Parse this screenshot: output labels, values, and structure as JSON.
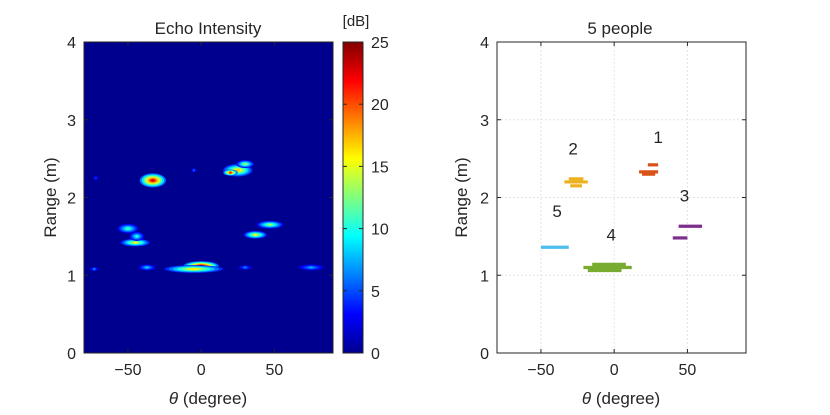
{
  "chart_data": [
    {
      "type": "heatmap",
      "title": "Echo Intensity",
      "xlabel_symbol": "θ",
      "xlabel_rest": " (degree)",
      "ylabel": "Range (m)",
      "xlim": [
        -80,
        90
      ],
      "ylim": [
        0,
        4
      ],
      "xticks": [
        -50,
        0,
        50
      ],
      "yticks": [
        0,
        1,
        2,
        3,
        4
      ],
      "background_color": "#00008f",
      "colorbar": {
        "unit_label": "[dB]",
        "range": [
          0,
          25
        ],
        "ticks": [
          0,
          5,
          10,
          15,
          20,
          25
        ],
        "colormap": "jet"
      },
      "hotspots": [
        {
          "theta": -33,
          "range": 2.22,
          "peak": 23,
          "theta_width": 9,
          "range_width": 0.09
        },
        {
          "theta": 25,
          "range": 2.35,
          "peak": 17,
          "theta_width": 10,
          "range_width": 0.08
        },
        {
          "theta": 20,
          "range": 2.32,
          "peak": 21,
          "theta_width": 5,
          "range_width": 0.04
        },
        {
          "theta": 30,
          "range": 2.43,
          "peak": 13,
          "theta_width": 6,
          "range_width": 0.05
        },
        {
          "theta": -50,
          "range": 1.6,
          "peak": 11,
          "theta_width": 7,
          "range_width": 0.06
        },
        {
          "theta": -45,
          "range": 1.42,
          "peak": 15,
          "theta_width": 10,
          "range_width": 0.05
        },
        {
          "theta": -44,
          "range": 1.5,
          "peak": 10,
          "theta_width": 5,
          "range_width": 0.06
        },
        {
          "theta": 37,
          "range": 1.52,
          "peak": 15,
          "theta_width": 8,
          "range_width": 0.05
        },
        {
          "theta": 47,
          "range": 1.65,
          "peak": 13,
          "theta_width": 9,
          "range_width": 0.05
        },
        {
          "theta": 0,
          "range": 1.12,
          "peak": 24,
          "theta_width": 12,
          "range_width": 0.06
        },
        {
          "theta": -5,
          "range": 1.08,
          "peak": 16,
          "theta_width": 20,
          "range_width": 0.05
        },
        {
          "theta": -37,
          "range": 1.1,
          "peak": 8,
          "theta_width": 6,
          "range_width": 0.04
        },
        {
          "theta": -73,
          "range": 1.08,
          "peak": 6,
          "theta_width": 3,
          "range_width": 0.03
        },
        {
          "theta": 75,
          "range": 1.1,
          "peak": 7,
          "theta_width": 9,
          "range_width": 0.04
        },
        {
          "theta": 30,
          "range": 1.1,
          "peak": 6,
          "theta_width": 5,
          "range_width": 0.03
        },
        {
          "theta": -5,
          "range": 2.35,
          "peak": 5,
          "theta_width": 2,
          "range_width": 0.03
        },
        {
          "theta": -72,
          "range": 2.25,
          "peak": 4,
          "theta_width": 2,
          "range_width": 0.03
        }
      ]
    },
    {
      "type": "scatter",
      "title": "5 people",
      "xlabel_symbol": "θ",
      "xlabel_rest": " (degree)",
      "ylabel": "Range (m)",
      "xlim": [
        -80,
        90
      ],
      "ylim": [
        0,
        4
      ],
      "xticks": [
        -50,
        0,
        50
      ],
      "yticks": [
        0,
        1,
        2,
        3,
        4
      ],
      "grid": true,
      "people": [
        {
          "label": "1",
          "color": "#d95319",
          "segments": [
            [
              19,
              28,
              2.3
            ],
            [
              17,
              30,
              2.33
            ],
            [
              23,
              30,
              2.42
            ]
          ],
          "label_pos": [
            30,
            2.7
          ]
        },
        {
          "label": "2",
          "color": "#edb120",
          "segments": [
            [
              -30,
              -22,
              2.15
            ],
            [
              -34,
              -18,
              2.2
            ],
            [
              -31,
              -21,
              2.24
            ]
          ],
          "label_pos": [
            -28,
            2.55
          ]
        },
        {
          "label": "3",
          "color": "#7e2f8e",
          "segments": [
            [
              40,
              50,
              1.48
            ],
            [
              44,
              60,
              1.63
            ]
          ],
          "label_pos": [
            48,
            1.95
          ]
        },
        {
          "label": "4",
          "color": "#77ac30",
          "segments": [
            [
              -18,
              5,
              1.06
            ],
            [
              -21,
              12,
              1.1
            ],
            [
              -15,
              8,
              1.14
            ]
          ],
          "label_pos": [
            -2,
            1.45
          ]
        },
        {
          "label": "5",
          "color": "#4dbeee",
          "segments": [
            [
              -50,
              -31,
              1.36
            ]
          ],
          "label_pos": [
            -39,
            1.75
          ]
        }
      ]
    }
  ]
}
